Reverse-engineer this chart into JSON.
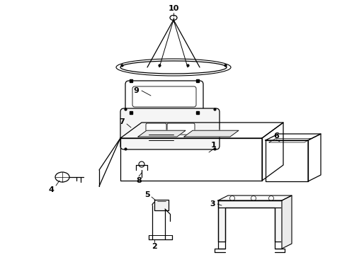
{
  "background_color": "#ffffff",
  "line_color": "#000000",
  "figsize": [
    4.9,
    3.6
  ],
  "dpi": 100
}
